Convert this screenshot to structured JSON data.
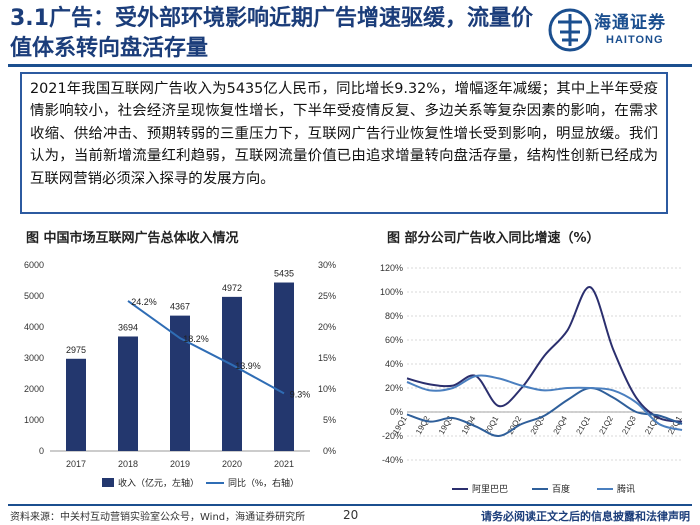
{
  "header": {
    "title": "3.1广告：受外部环境影响近期广告增速驱缓，流量价值体系转向盘活存量",
    "logo_cn": "海通证券",
    "logo_en": "HAITONG"
  },
  "summary": "2021年我国互联网广告收入为5435亿人民币，同比增长9.32%，增幅逐年减缓；其中上半年受疫情影响较小，社会经济呈现恢复性增长，下半年受疫情反复、多边关系等复杂因素的影响，在需求收缩、供给冲击、预期转弱的三重压力下，互联网广告行业恢复性增长受到影响，明显放缓。我们认为，当前新增流量红利趋弱，互联网流量价值已由追求增量转向盘活存量，结构性创新已经成为互联网营销必须深入探寻的发展方向。",
  "chart_left_title": "图 中国市场互联网广告总体收入情况",
  "chart_right_title": "图 部分公司广告收入同比增速（%）",
  "chart_data": [
    {
      "type": "bar",
      "categories": [
        "2017",
        "2018",
        "2019",
        "2020",
        "2021"
      ],
      "series": [
        {
          "name": "收入（亿元，左轴）",
          "type": "bar",
          "values": [
            2975,
            3694,
            4367,
            4972,
            5435
          ],
          "labels": [
            "2975",
            "3694",
            "4367",
            "4972",
            "5435"
          ]
        },
        {
          "name": "同比（%，右轴）",
          "type": "line",
          "values": [
            null,
            24.2,
            18.2,
            13.9,
            9.3
          ],
          "labels": [
            "",
            "24.2%",
            "18.2%",
            "13.9%",
            "9.3%"
          ]
        }
      ],
      "y_left_ticks": [
        "0",
        "1000",
        "2000",
        "3000",
        "4000",
        "5000",
        "6000"
      ],
      "y_right_ticks": [
        "0%",
        "5%",
        "10%",
        "15%",
        "20%",
        "25%",
        "30%"
      ],
      "ylim_left": [
        0,
        6000
      ],
      "ylim_right": [
        0,
        30
      ],
      "legend_position": "bottom",
      "colors": {
        "bar": "#23376e",
        "line": "#2f6db5"
      }
    },
    {
      "type": "line",
      "categories": [
        "19Q1",
        "19Q2",
        "19Q3",
        "19Q4",
        "20Q1",
        "20Q2",
        "20Q3",
        "20Q4",
        "21Q1",
        "21Q2",
        "21Q3",
        "21Q4",
        "22Q1"
      ],
      "series": [
        {
          "name": "阿里巴巴",
          "color": "#2b2f6e",
          "values": [
            28,
            23,
            22,
            30,
            5,
            20,
            47,
            68,
            104,
            52,
            12,
            -5,
            -8
          ]
        },
        {
          "name": "百度",
          "color": "#2f5f9a",
          "values": [
            -2,
            -8,
            -5,
            -12,
            -20,
            -10,
            -3,
            10,
            20,
            12,
            0,
            -3,
            -10
          ]
        },
        {
          "name": "腾讯",
          "color": "#4a7fbf",
          "values": [
            25,
            18,
            20,
            30,
            28,
            22,
            18,
            20,
            20,
            18,
            8,
            -10,
            -15
          ]
        }
      ],
      "y_ticks": [
        "-40%",
        "-20%",
        "0%",
        "20%",
        "40%",
        "60%",
        "80%",
        "100%",
        "120%"
      ],
      "ylim": [
        -40,
        120
      ],
      "grid": true,
      "legend_position": "bottom"
    }
  ],
  "footer": {
    "source": "资料来源：中关村互动营销实验室公众号，Wind，海通证券研究所",
    "page": "20",
    "disclaimer": "请务必阅读正文之后的信息披露和法律声明"
  }
}
